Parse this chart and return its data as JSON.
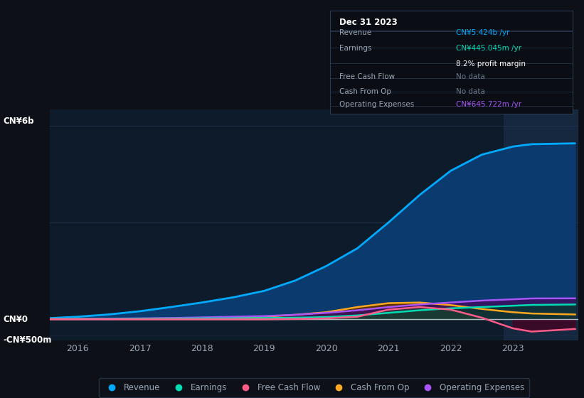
{
  "background_color": "#0d1117",
  "plot_bg_color": "#0d1b2a",
  "grid_color": "#253550",
  "text_color": "#9aa5b4",
  "white_color": "#ffffff",
  "years": [
    2015.5,
    2016,
    2016.5,
    2017,
    2017.5,
    2018,
    2018.5,
    2019,
    2019.5,
    2020,
    2020.5,
    2021,
    2021.5,
    2022,
    2022.5,
    2023,
    2023.3,
    2024.0
  ],
  "revenue": [
    0.03,
    0.08,
    0.15,
    0.25,
    0.38,
    0.52,
    0.68,
    0.88,
    1.2,
    1.65,
    2.2,
    3.0,
    3.85,
    4.6,
    5.1,
    5.35,
    5.424,
    5.45
  ],
  "earnings": [
    0.01,
    0.01,
    0.01,
    0.02,
    0.02,
    0.03,
    0.03,
    0.04,
    0.05,
    0.07,
    0.12,
    0.2,
    0.28,
    0.34,
    0.38,
    0.42,
    0.445,
    0.46
  ],
  "free_cash": [
    0.0,
    0.0,
    0.0,
    0.0,
    0.0,
    0.0,
    0.0,
    0.0,
    0.01,
    0.03,
    0.08,
    0.3,
    0.38,
    0.3,
    0.05,
    -0.28,
    -0.38,
    -0.3
  ],
  "cash_from_op": [
    0.01,
    0.01,
    0.02,
    0.02,
    0.03,
    0.04,
    0.06,
    0.08,
    0.14,
    0.22,
    0.38,
    0.5,
    0.52,
    0.44,
    0.32,
    0.22,
    0.18,
    0.15
  ],
  "op_expenses": [
    0.01,
    0.01,
    0.02,
    0.03,
    0.04,
    0.06,
    0.08,
    0.1,
    0.14,
    0.2,
    0.28,
    0.38,
    0.46,
    0.52,
    0.58,
    0.62,
    0.646,
    0.65
  ],
  "revenue_color": "#00aaff",
  "earnings_color": "#00ddb3",
  "free_cash_color": "#ff5c8a",
  "cash_from_op_color": "#ffa820",
  "op_expenses_color": "#a855f7",
  "revenue_fill": "#0a3a6e",
  "cash_from_op_fill": "#5a3200",
  "op_expenses_fill": "#3a1060",
  "highlight_x_start": 2022.85,
  "highlight_x_end": 2024.05,
  "highlight_color": "#162840",
  "ylim_min": -0.65,
  "ylim_max": 6.5,
  "xlim_min": 2015.55,
  "xlim_max": 2024.05,
  "xlabel_years": [
    2016,
    2017,
    2018,
    2019,
    2020,
    2021,
    2022,
    2023
  ],
  "legend_labels": [
    "Revenue",
    "Earnings",
    "Free Cash Flow",
    "Cash From Op",
    "Operating Expenses"
  ],
  "legend_colors": [
    "#00aaff",
    "#00ddb3",
    "#ff5c8a",
    "#ffa820",
    "#a855f7"
  ]
}
